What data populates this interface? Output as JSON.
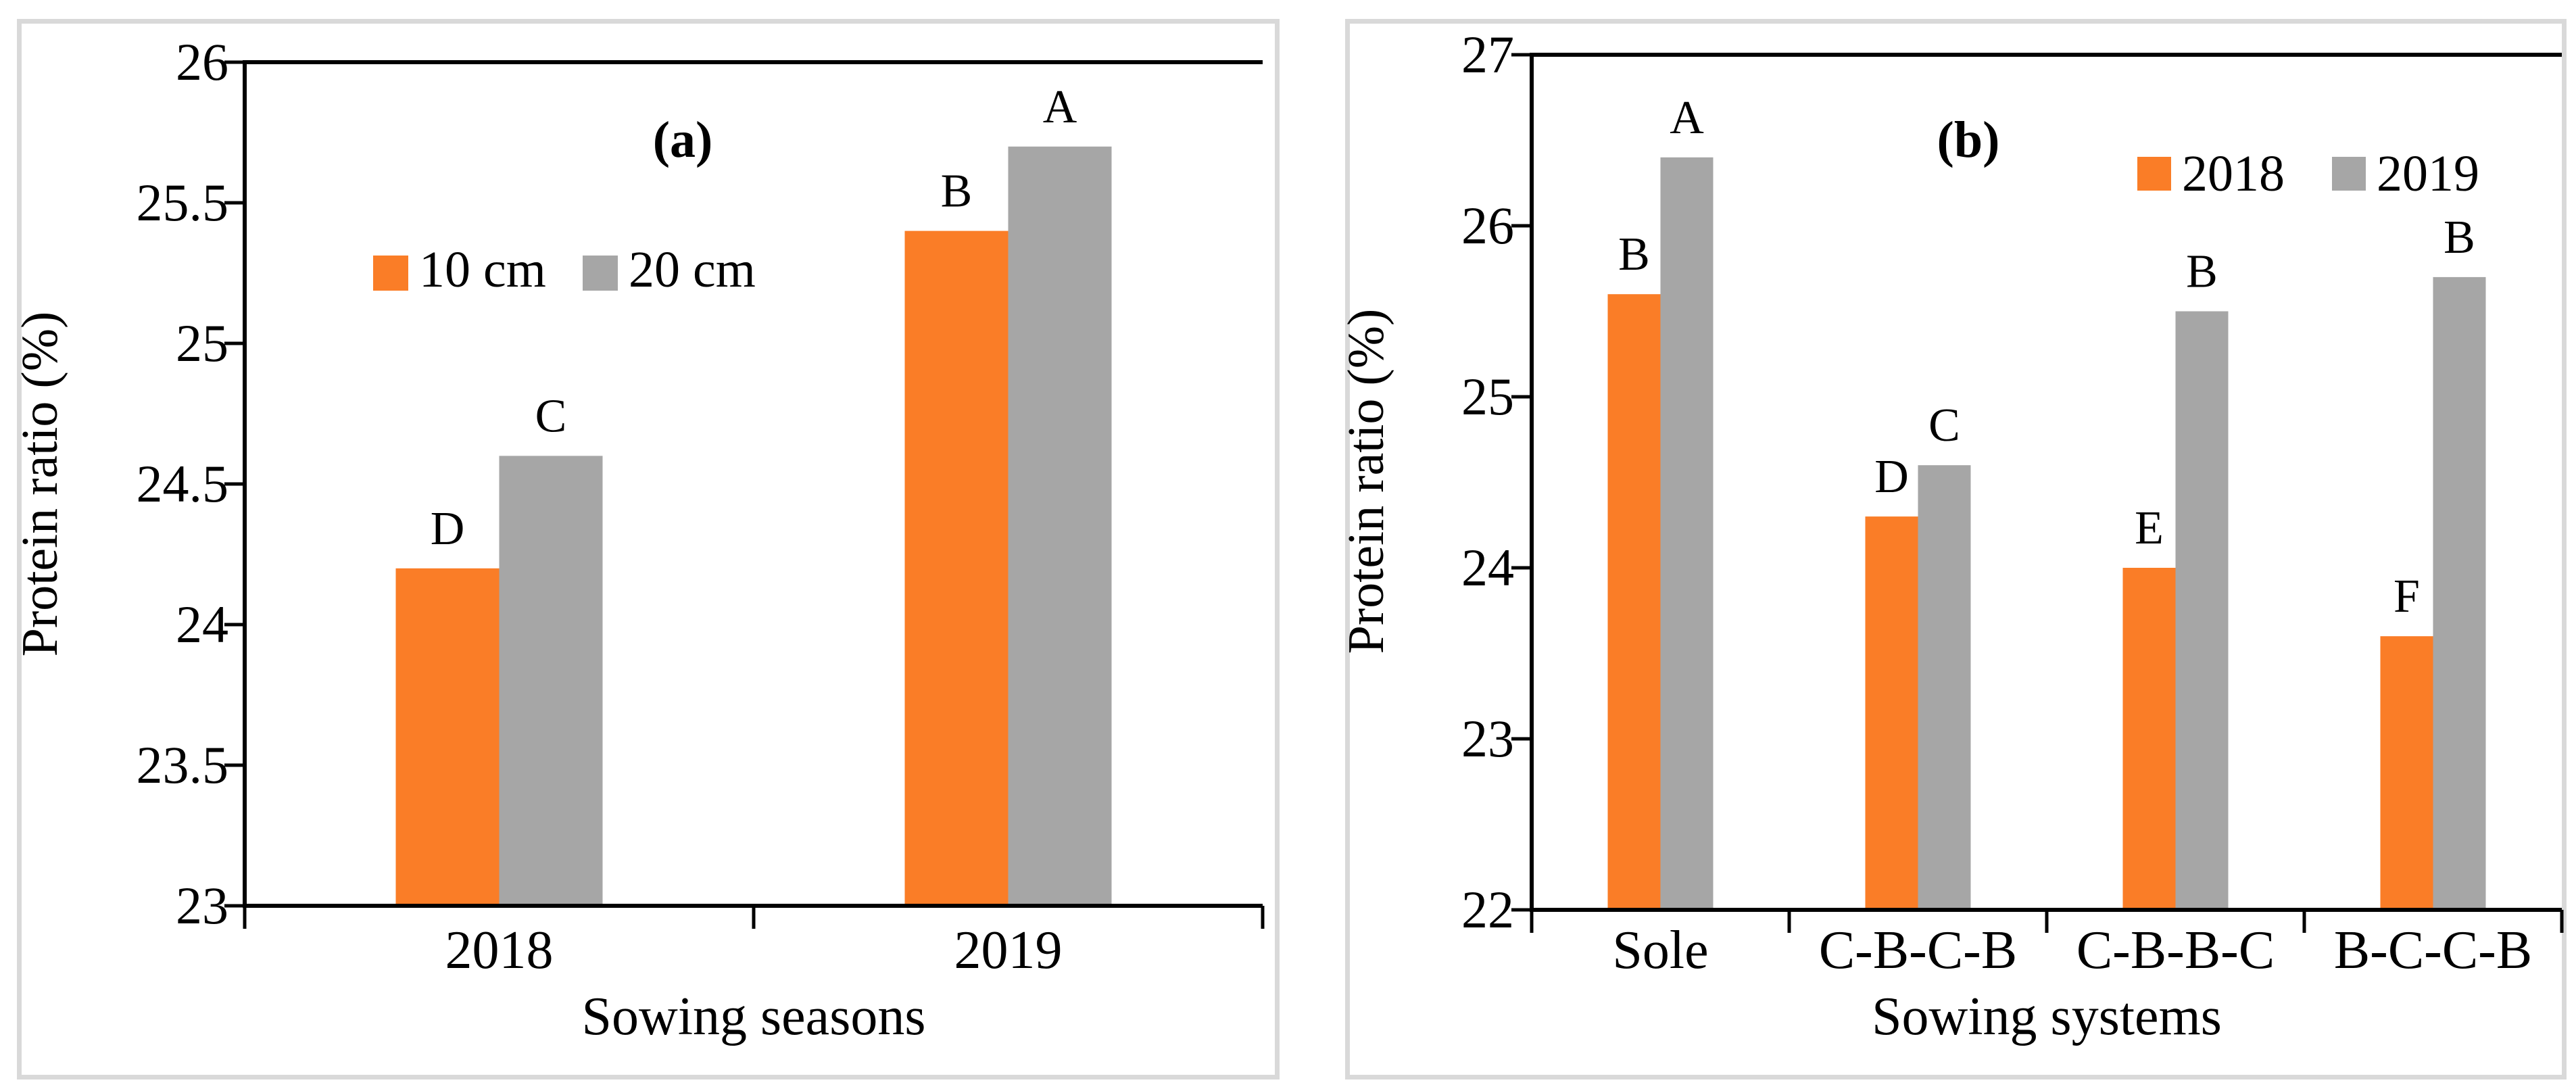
{
  "figure": {
    "background": "#ffffff",
    "panel_border_color": "#D9D9D9"
  },
  "colors": {
    "orange": "#FA7D27",
    "gray": "#A6A6A6",
    "axis": "#000000",
    "text": "#000000"
  },
  "chart_data": [
    {
      "id": "a",
      "type": "bar",
      "panel_label": "(a)",
      "xlabel": "Sowing seasons",
      "ylabel": "Protein ratio (%)",
      "ylim": [
        23,
        26
      ],
      "yticks": [
        26,
        25.5,
        25,
        24.5,
        24,
        23.5,
        23
      ],
      "ytick_labels": [
        "26",
        "25.5",
        "25",
        "24.5",
        "24",
        "23.5",
        "23"
      ],
      "categories": [
        "2018",
        "2019"
      ],
      "legend_position": "inside-top-left",
      "grid": false,
      "series": [
        {
          "name": "10 cm",
          "color_key": "orange",
          "values": [
            24.2,
            25.4
          ],
          "letters": [
            "D",
            "B"
          ]
        },
        {
          "name": "20 cm",
          "color_key": "gray",
          "values": [
            24.6,
            25.7
          ],
          "letters": [
            "C",
            "A"
          ]
        }
      ]
    },
    {
      "id": "b",
      "type": "bar",
      "panel_label": "(b)",
      "xlabel": "Sowing systems",
      "ylabel": "Protein ratio (%)",
      "ylim": [
        22,
        27
      ],
      "yticks": [
        27,
        26,
        25,
        24,
        23,
        22
      ],
      "ytick_labels": [
        "27",
        "26",
        "25",
        "24",
        "23",
        "22"
      ],
      "categories": [
        "Sole",
        "C-B-C-B",
        "C-B-B-C",
        "B-C-C-B"
      ],
      "legend_position": "inside-top-right",
      "grid": false,
      "series": [
        {
          "name": "2018",
          "color_key": "orange",
          "values": [
            25.6,
            24.3,
            24.0,
            23.6
          ],
          "letters": [
            "B",
            "D",
            "E",
            "F"
          ]
        },
        {
          "name": "2019",
          "color_key": "gray",
          "values": [
            26.4,
            24.6,
            25.5,
            25.7
          ],
          "letters": [
            "A",
            "C",
            "B",
            "B"
          ]
        }
      ]
    }
  ]
}
